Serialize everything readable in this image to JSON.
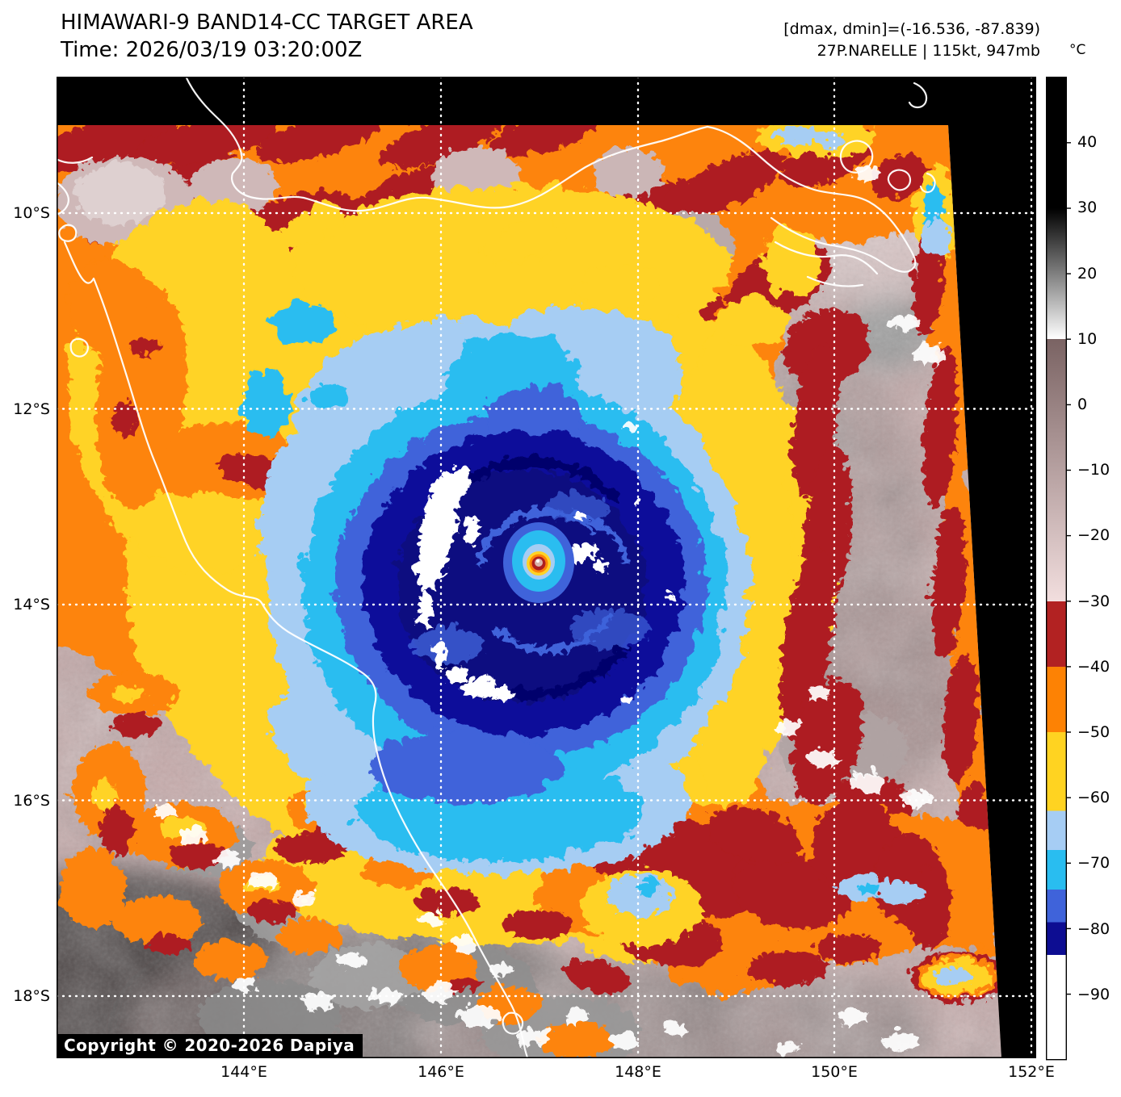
{
  "header": {
    "title": "HIMAWARI-9 BAND14-CC TARGET AREA",
    "time": "Time: 2026/03/19 03:20:00Z",
    "stats": "[dmax, dmin]=(-16.536, -87.839)",
    "storm": "27P.NARELLE | 115kt, 947mb"
  },
  "colorbar": {
    "unit": "°C",
    "domain": [
      50,
      -100
    ],
    "ticks": [
      {
        "label": "40",
        "value": 40
      },
      {
        "label": "30",
        "value": 30
      },
      {
        "label": "20",
        "value": 20
      },
      {
        "label": "10",
        "value": 10
      },
      {
        "label": "0",
        "value": 0
      },
      {
        "label": "−10",
        "value": -10
      },
      {
        "label": "−20",
        "value": -20
      },
      {
        "label": "−30",
        "value": -30
      },
      {
        "label": "−40",
        "value": -40
      },
      {
        "label": "−50",
        "value": -50
      },
      {
        "label": "−60",
        "value": -60
      },
      {
        "label": "−70",
        "value": -70
      },
      {
        "label": "−80",
        "value": -80
      },
      {
        "label": "−90",
        "value": -90
      }
    ],
    "segments": [
      {
        "from": 50,
        "to": 30,
        "color": "#000000"
      },
      {
        "from": 30,
        "to": 10,
        "color": "#000000",
        "color2": "#ffffff"
      },
      {
        "from": 10,
        "to": -30,
        "color": "#7a6363",
        "color2": "#f2dede"
      },
      {
        "from": -30,
        "to": -40,
        "color": "#b22222"
      },
      {
        "from": -40,
        "to": -50,
        "color": "#fd8204"
      },
      {
        "from": -50,
        "to": -62,
        "color": "#ffd321"
      },
      {
        "from": -62,
        "to": -68,
        "color": "#a6cdf4"
      },
      {
        "from": -68,
        "to": -74,
        "color": "#29bdf0"
      },
      {
        "from": -74,
        "to": -79,
        "color": "#3f63da"
      },
      {
        "from": -79,
        "to": -84,
        "color": "#0d0d92"
      },
      {
        "from": -84,
        "to": -100,
        "color": "#ffffff"
      }
    ]
  },
  "axes": {
    "lat": [
      "10°S",
      "12°S",
      "14°S",
      "16°S",
      "18°S"
    ],
    "lon": [
      "144°E",
      "146°E",
      "148°E",
      "150°E",
      "152°E"
    ]
  },
  "map": {
    "copyright": "Copyright © 2020-2026 Dapiya"
  },
  "palette": {
    "no_data": "#000000",
    "warm_texture": "#c5a9a9",
    "orange": "#fd8408",
    "dark_red": "#ae1e20",
    "yellow": "#ffd325",
    "light_blue": "#a6cdf3",
    "cyan": "#2abdf0",
    "royal_blue": "#3f63da",
    "navy": "#10109a",
    "cold_white": "#ffffff"
  }
}
